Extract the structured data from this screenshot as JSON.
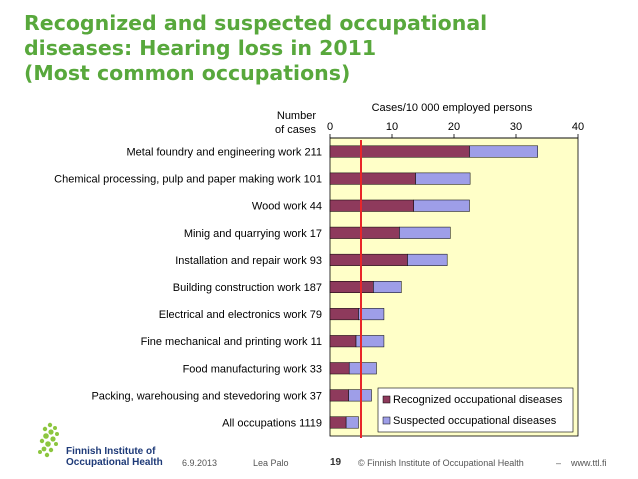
{
  "title_lines": [
    "Recognized and suspected occupational",
    "diseases: Hearing loss in 2011",
    "(Most common occupations)"
  ],
  "colors": {
    "title": "#58a83c",
    "plot_bg": "#ffffc8",
    "recognized": "#8e3a5c",
    "suspected": "#9e9ee8",
    "reference_line": "#e8262a",
    "logo": "#1e3a78",
    "logo_accent": "#8cc63f"
  },
  "chart_data": {
    "type": "bar",
    "orientation": "horizontal",
    "stacked": true,
    "xlabel": "Cases/10 000 employed persons",
    "ylabel_lines": [
      "Number",
      "of cases"
    ],
    "xlim": [
      0,
      40
    ],
    "xticks": [
      0,
      10,
      20,
      30,
      40
    ],
    "categories": [
      "Metal foundry and engineering work 211",
      "Chemical processing, pulp and paper making work 101",
      "Wood work 44",
      "Minig and quarrying work 17",
      "Installation and repair work 93",
      "Building construction work 187",
      "Electrical and electronics work 79",
      "Fine mechanical and printing work 11",
      "Food manufacturing work 33",
      "Packing, warehousing and stevedoring work 37",
      "All occupations 1119"
    ],
    "series": [
      {
        "name": "Recognized occupational diseases",
        "values": [
          22.5,
          13.8,
          13.5,
          11.2,
          12.5,
          7.0,
          4.6,
          4.2,
          3.1,
          3.0,
          2.6
        ]
      },
      {
        "name": "Suspected occupational diseases",
        "values": [
          11.0,
          8.8,
          9.0,
          8.2,
          6.4,
          4.5,
          4.1,
          4.5,
          4.4,
          3.7,
          2.0
        ]
      }
    ],
    "reference_line_x": 5,
    "legend_position": "bottom-right",
    "grid": false
  },
  "footer": {
    "date": "6.9.2013",
    "author": "Lea Palo",
    "page": "19",
    "copyright": "© Finnish Institute of Occupational Health",
    "separator": "–",
    "url": "www.ttl.fi"
  },
  "logo": {
    "name_lines": [
      "Finnish Institute of",
      "Occupational Health"
    ],
    "icon": "ttl-logo-mark"
  }
}
